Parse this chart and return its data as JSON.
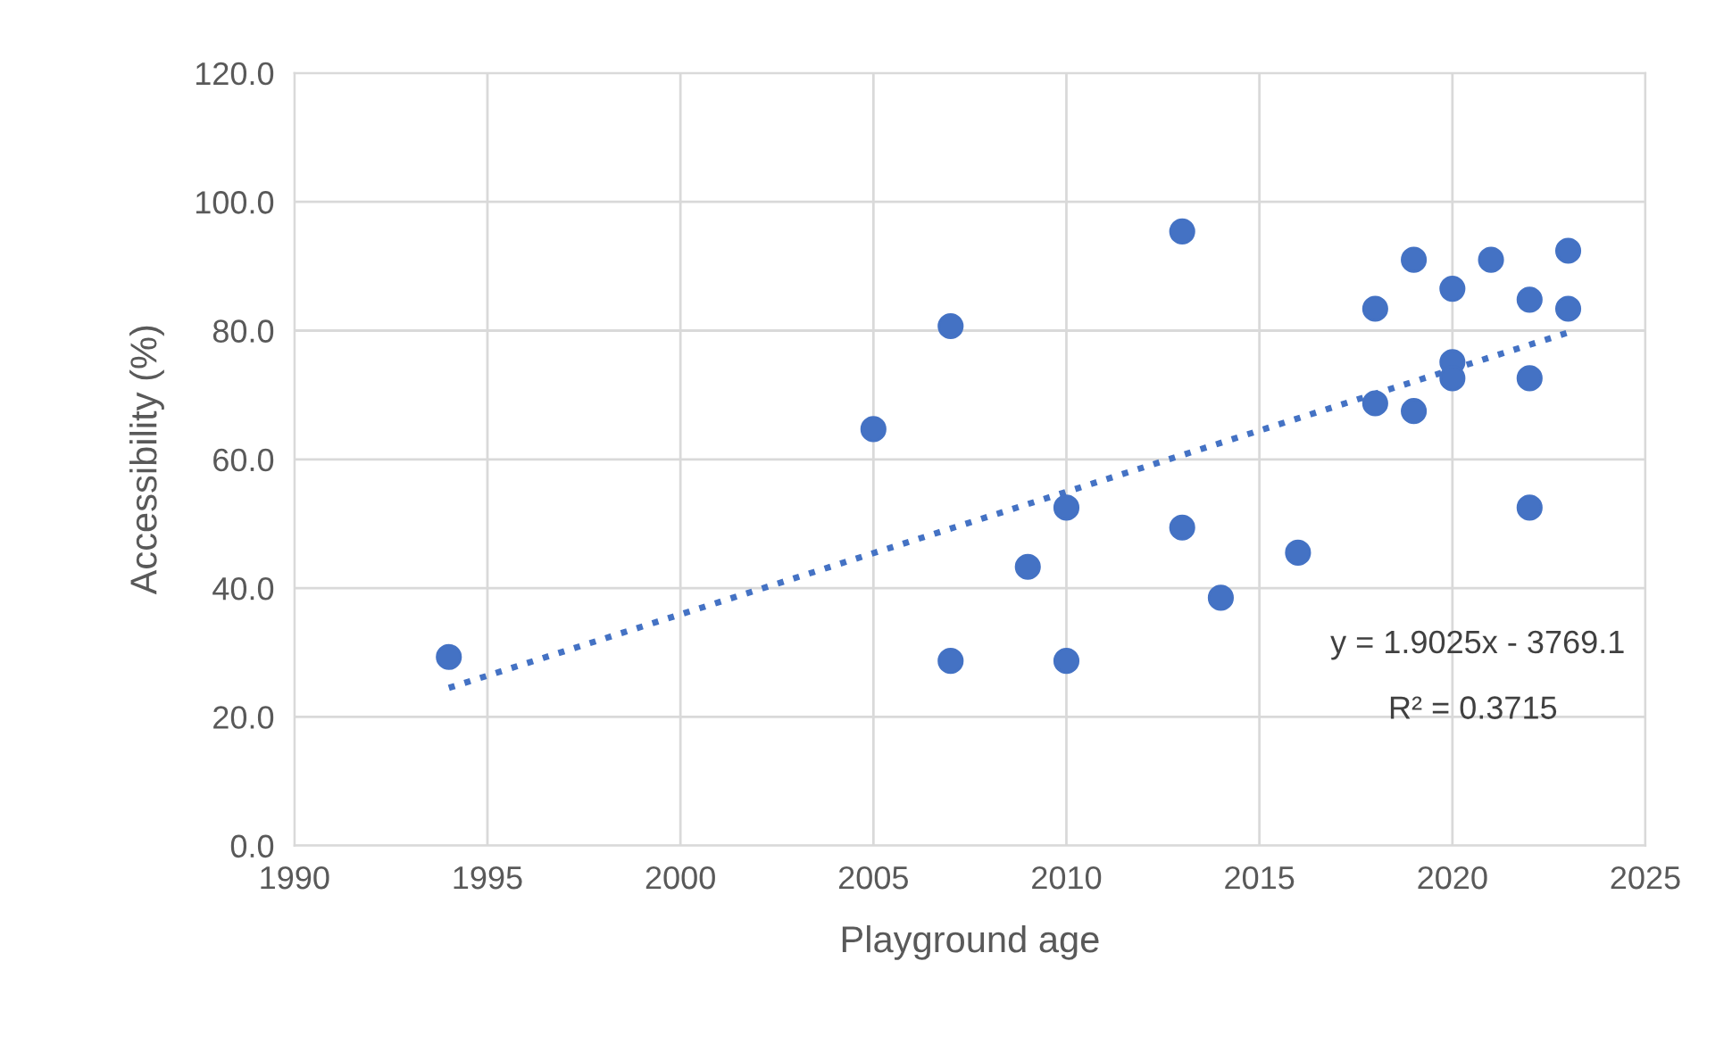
{
  "chart_data": {
    "type": "scatter",
    "xlabel": "Playground age",
    "ylabel": "Accessibility (%)",
    "xlim": [
      1990,
      2025
    ],
    "xticks": [
      1990,
      1995,
      2000,
      2005,
      2010,
      2015,
      2020,
      2025
    ],
    "ylim": [
      0,
      120
    ],
    "yticks": [
      {
        "value": 0,
        "label": "0.0"
      },
      {
        "value": 20,
        "label": "20.0"
      },
      {
        "value": 40,
        "label": "40.0"
      },
      {
        "value": 60,
        "label": "60.0"
      },
      {
        "value": 80,
        "label": "80.0"
      },
      {
        "value": 100,
        "label": "100.0"
      },
      {
        "value": 120,
        "label": "120.0"
      }
    ],
    "grid": true,
    "series": [
      {
        "marker": "circle",
        "color": "#4472c4",
        "x": [
          1994,
          2005,
          2007,
          2007,
          2009,
          2010,
          2010,
          2013,
          2013,
          2014,
          2016,
          2018,
          2018,
          2019,
          2019,
          2020,
          2020,
          2020,
          2021,
          2022,
          2022,
          2022,
          2023,
          2023
        ],
        "values": [
          29.3,
          64.7,
          80.7,
          28.7,
          43.3,
          52.5,
          28.7,
          95.4,
          49.4,
          38.5,
          45.5,
          83.4,
          68.7,
          91.0,
          67.5,
          86.5,
          75.1,
          72.6,
          91.0,
          84.8,
          72.6,
          52.5,
          92.4,
          83.4
        ]
      },
      {
        "type": "line",
        "color": "#4472c4",
        "line_style": "dotted",
        "x": [
          1994,
          2023
        ],
        "values": [
          24.5,
          79.7
        ]
      }
    ],
    "annotations": [
      "y = 1.9025x - 3769.1",
      "R² = 0.3715"
    ]
  }
}
